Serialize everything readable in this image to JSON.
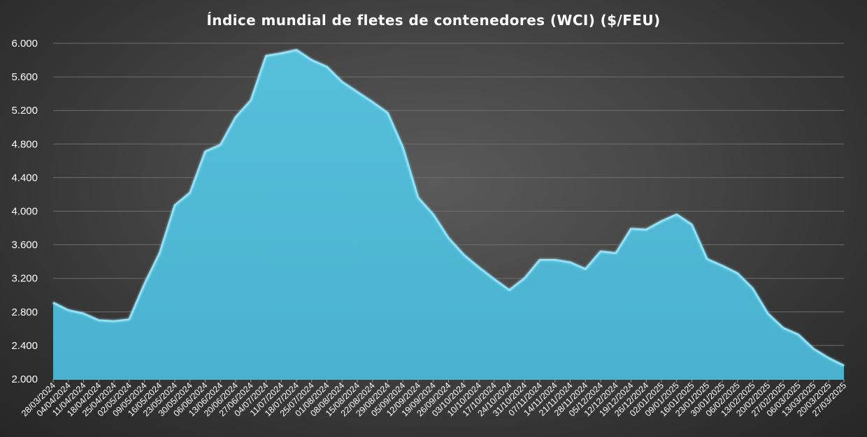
{
  "colors": {
    "background": "#474747",
    "area_fill": "#4fb8d4",
    "area_edge": "#8fe4fb",
    "text": "#ffffff",
    "grid": "#6e6e6e"
  },
  "chart_data": {
    "type": "area",
    "title": "Índice mundial de fletes de contenedores (WCI) ($/FEU)",
    "xlabel": "",
    "ylabel": "",
    "ylim": [
      2000,
      6000
    ],
    "y_ticks": [
      "2.000",
      "2.400",
      "2.800",
      "3.200",
      "3.600",
      "4.000",
      "4.400",
      "4.800",
      "5.200",
      "5.600",
      "6.000"
    ],
    "grid": "horizontal",
    "legend": "none",
    "categories": [
      "28/03/2024",
      "04/04/2024",
      "11/04/2024",
      "18/04/2024",
      "25/04/2024",
      "02/05/2024",
      "09/05/2024",
      "16/05/2024",
      "23/05/2024",
      "30/05/2024",
      "06/06/2024",
      "13/06/2024",
      "20/06/2024",
      "27/06/2024",
      "04/07/2024",
      "11/07/2024",
      "18/07/2024",
      "25/07/2024",
      "01/08/2024",
      "08/08/2024",
      "15/08/2024",
      "22/08/2024",
      "29/08/2024",
      "05/09/2024",
      "12/09/2024",
      "19/09/2024",
      "26/09/2024",
      "03/10/2024",
      "10/10/2024",
      "17/10/2024",
      "24/10/2024",
      "31/10/2024",
      "07/11/2024",
      "14/11/2024",
      "21/11/2024",
      "28/11/2024",
      "05/12/2024",
      "12/12/2024",
      "19/12/2024",
      "26/12/2024",
      "02/01/2025",
      "09/01/2025",
      "16/01/2025",
      "23/01/2025",
      "30/01/2025",
      "06/02/2025",
      "13/02/2025",
      "20/02/2025",
      "27/02/2025",
      "06/03/2025",
      "13/03/2025",
      "20/03/2025",
      "27/03/2025"
    ],
    "series": [
      {
        "values": [
          2910,
          2820,
          2780,
          2700,
          2690,
          2710,
          3130,
          3500,
          4070,
          4220,
          4710,
          4790,
          5120,
          5320,
          5850,
          5880,
          5920,
          5800,
          5720,
          5540,
          5420,
          5300,
          5170,
          4760,
          4160,
          3960,
          3680,
          3480,
          3330,
          3190,
          3060,
          3200,
          3420,
          3420,
          3390,
          3310,
          3520,
          3500,
          3790,
          3780,
          3880,
          3960,
          3840,
          3430,
          3350,
          3260,
          3080,
          2780,
          2610,
          2530,
          2360,
          2250,
          2160
        ]
      }
    ]
  }
}
